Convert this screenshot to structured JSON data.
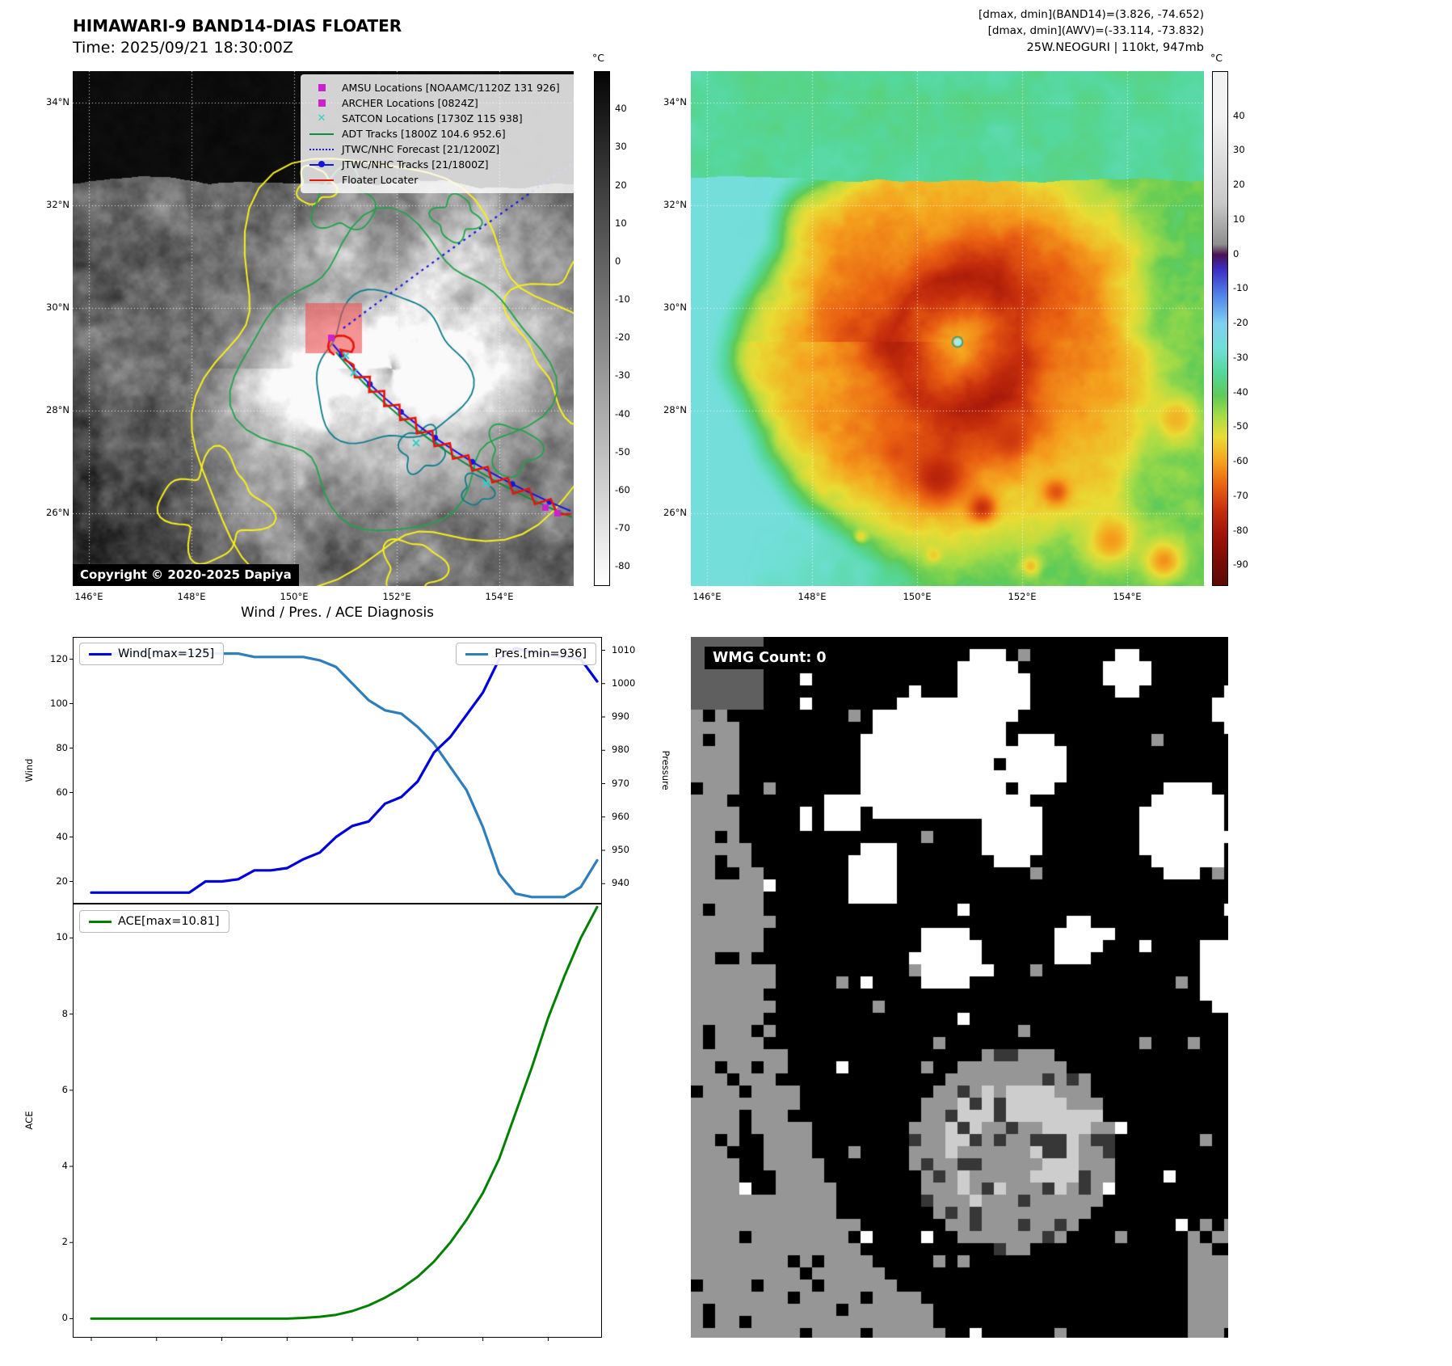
{
  "panel_tl": {
    "title": "HIMAWARI-9 BAND14-DIAS FLOATER",
    "subtitle": "Time: 2025/09/21 18:30:00Z",
    "copyright": "Copyright © 2020-2025 Dapiya",
    "floater_box_color": "#f05050",
    "colorbar": {
      "unit": "°C",
      "ticks": [
        40,
        30,
        20,
        10,
        0,
        -10,
        -20,
        -30,
        -40,
        -50,
        -60,
        -70,
        -80
      ],
      "vmax": 50,
      "vmin": -85,
      "top_color": "#050505",
      "bottom_color": "#ffffff"
    },
    "lat_ticks": [
      "34°N",
      "32°N",
      "30°N",
      "28°N",
      "26°N"
    ],
    "lon_ticks": [
      "146°E",
      "148°E",
      "150°E",
      "152°E",
      "154°E"
    ],
    "legend": [
      {
        "label": "AMSU Locations [NOAAMC/1120Z 131 926]",
        "marker": "square",
        "color": "#cc22cc"
      },
      {
        "label": "ARCHER Locations [0824Z]",
        "marker": "square",
        "color": "#cc22cc"
      },
      {
        "label": "SATCON Locations [1730Z 115 938]",
        "marker": "x",
        "color": "#2fd0c8"
      },
      {
        "label": "ADT Tracks [1800Z 104.6 952.6]",
        "marker": "line",
        "color": "#0a8f3c"
      },
      {
        "label": "JTWC/NHC Forecast [21/1200Z]",
        "marker": "dotted",
        "color": "#1515e0"
      },
      {
        "label": "JTWC/NHC Tracks [21/1800Z]",
        "marker": "line-dot",
        "color": "#1515e0"
      },
      {
        "label": "Floater Locater",
        "marker": "line",
        "color": "#e8130b"
      }
    ]
  },
  "panel_tr": {
    "header_lines": [
      "[dmax, dmin](BAND14)=(3.826, -74.652)",
      "[dmax, dmin](AWV)=(-33.114, -73.832)",
      "25W.NEOGURI | 110kt, 947mb"
    ],
    "colorbar": {
      "unit": "°C",
      "ticks": [
        40,
        30,
        20,
        10,
        0,
        -10,
        -20,
        -30,
        -40,
        -50,
        -60,
        -70,
        -80,
        -90
      ],
      "vmax": 53,
      "vmin": -96
    },
    "palette": [
      [
        40,
        "#f2f2f2"
      ],
      [
        15,
        "#c9c9c9"
      ],
      [
        3,
        "#8f8f8f"
      ],
      [
        0,
        "#4b1152"
      ],
      [
        -4,
        "#3a2bbf"
      ],
      [
        -12,
        "#4f86e8"
      ],
      [
        -20,
        "#7fd0ee"
      ],
      [
        -27,
        "#72dfd8"
      ],
      [
        -34,
        "#55d89e"
      ],
      [
        -41,
        "#5ecb57"
      ],
      [
        -47,
        "#a8dc46"
      ],
      [
        -53,
        "#e9dc35"
      ],
      [
        -60,
        "#f5a31e"
      ],
      [
        -67,
        "#ea6212"
      ],
      [
        -74,
        "#c8300c"
      ],
      [
        -81,
        "#a01409"
      ],
      [
        -89,
        "#7a0d06"
      ],
      [
        -96,
        "#5c0a05"
      ]
    ],
    "lat_ticks": [
      "34°N",
      "32°N",
      "30°N",
      "28°N",
      "26°N"
    ],
    "lon_ticks": [
      "146°E",
      "148°E",
      "150°E",
      "152°E",
      "154°E"
    ]
  },
  "wmg": {
    "label": "WMG Count: 0"
  },
  "chart_data": [
    {
      "type": "line",
      "title": "Wind / Pres. / ACE Diagnosis",
      "x": [
        0,
        1,
        2,
        3,
        4,
        5,
        6,
        7,
        8,
        9,
        10,
        11,
        12,
        13,
        14,
        15,
        16,
        17,
        18,
        19,
        20,
        21,
        22,
        23,
        24,
        25,
        26,
        27,
        28,
        29,
        30,
        31
      ],
      "series": [
        {
          "name": "Wind[max=125]",
          "axis": "left",
          "color": "#0000dd",
          "values": [
            15,
            15,
            15,
            15,
            15,
            15,
            15,
            20,
            20,
            21,
            25,
            25,
            26,
            30,
            33,
            40,
            45,
            47,
            55,
            58,
            65,
            78,
            85,
            95,
            105,
            120,
            125,
            123,
            122,
            121,
            120,
            110
          ]
        },
        {
          "name": "Pres.[min=936]",
          "axis": "right",
          "color": "#2e7ebc",
          "values": [
            1009,
            1009,
            1009,
            1009,
            1009,
            1009,
            1009,
            1009,
            1009,
            1009,
            1008,
            1008,
            1008,
            1008,
            1007,
            1005,
            1000,
            995,
            992,
            991,
            987,
            982,
            975,
            968,
            957,
            943,
            937,
            936,
            936,
            936,
            939,
            947
          ]
        }
      ],
      "left_axis": {
        "label": "Wind",
        "ticks": [
          20,
          40,
          60,
          80,
          100,
          120
        ],
        "range": [
          10,
          130
        ]
      },
      "right_axis": {
        "label": "Pressure",
        "ticks": [
          940,
          950,
          960,
          970,
          980,
          990,
          1000,
          1010
        ],
        "range": [
          934,
          1014
        ]
      },
      "legend_position": "inside-top",
      "grid": false
    },
    {
      "type": "line",
      "title": "",
      "x": [
        0,
        1,
        2,
        3,
        4,
        5,
        6,
        7,
        8,
        9,
        10,
        11,
        12,
        13,
        14,
        15,
        16,
        17,
        18,
        19,
        20,
        21,
        22,
        23,
        24,
        25,
        26,
        27,
        28,
        29,
        30,
        31
      ],
      "series": [
        {
          "name": "ACE[max=10.81]",
          "axis": "left",
          "color": "#008000",
          "values": [
            0,
            0,
            0,
            0,
            0,
            0,
            0,
            0,
            0,
            0,
            0,
            0,
            0,
            0.02,
            0.05,
            0.1,
            0.2,
            0.35,
            0.55,
            0.8,
            1.1,
            1.5,
            2.0,
            2.6,
            3.3,
            4.2,
            5.4,
            6.6,
            7.9,
            9.0,
            10.0,
            10.81
          ]
        }
      ],
      "left_axis": {
        "label": "ACE",
        "ticks": [
          0,
          2,
          4,
          6,
          8,
          10
        ],
        "range": [
          -0.5,
          10.9
        ]
      },
      "legend_position": "inside-top-left",
      "grid": false
    }
  ]
}
